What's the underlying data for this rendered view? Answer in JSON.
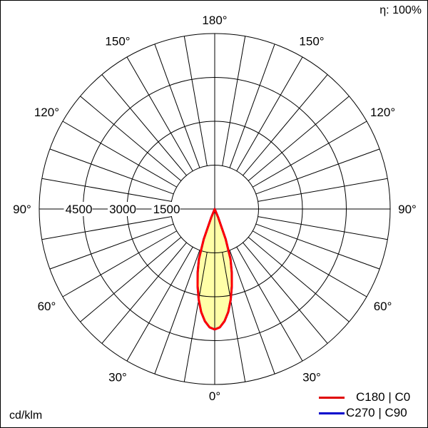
{
  "efficiency_label": "η: 100%",
  "unit_label": "cd/klm",
  "chart_data": {
    "type": "polar",
    "radial_ticks": [
      1500,
      3000,
      4500
    ],
    "radial_tick_labels": [
      "1500",
      "3000",
      "4500"
    ],
    "radial_max": 6000,
    "angle_tick_labels": [
      {
        "angle": 0,
        "label": "0°"
      },
      {
        "angle": 30,
        "label": "30°"
      },
      {
        "angle": 60,
        "label": "60°"
      },
      {
        "angle": 90,
        "label": "90°"
      },
      {
        "angle": 120,
        "label": "120°"
      },
      {
        "angle": 150,
        "label": "150°"
      },
      {
        "angle": 180,
        "label": "180°"
      }
    ],
    "grid_angle_step": 10,
    "grid": true,
    "legend_position": "bottom-right",
    "angles": [
      0,
      2.5,
      5,
      7.5,
      10,
      12.5,
      15,
      17.5,
      20,
      22.5,
      25
    ],
    "series": [
      {
        "name": "C270 | C90",
        "color": "#0000ff",
        "values": [
          4120,
          4050,
          3850,
          3550,
          3150,
          2700,
          2250,
          1800,
          1100,
          300,
          0
        ]
      },
      {
        "name": "C180 | C0",
        "color": "#ff0000",
        "fill": "#ffff99",
        "values": [
          4120,
          4050,
          3850,
          3550,
          3150,
          2700,
          2250,
          1800,
          1100,
          300,
          0
        ]
      }
    ]
  }
}
